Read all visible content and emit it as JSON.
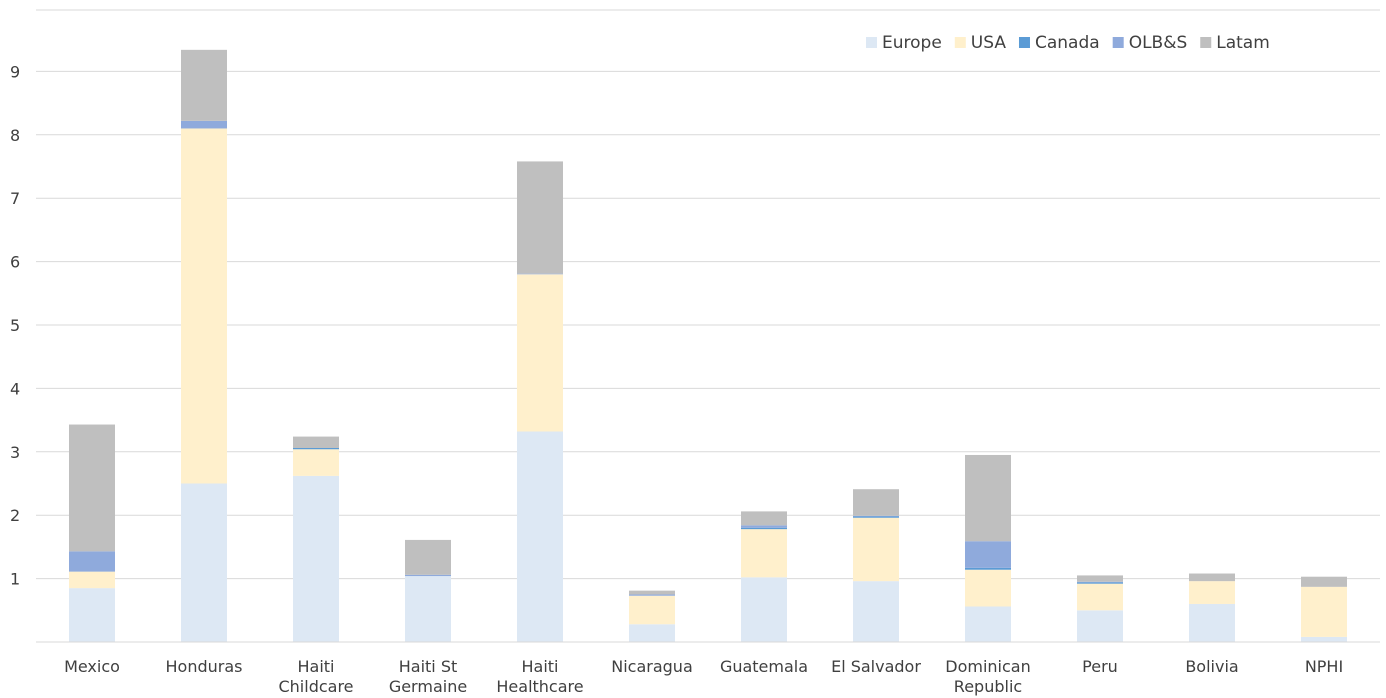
{
  "chart_data": {
    "type": "bar",
    "stacked": true,
    "categories": [
      [
        "Mexico"
      ],
      [
        "Honduras"
      ],
      [
        "Haiti",
        "Childcare"
      ],
      [
        "Haiti St",
        "Germaine"
      ],
      [
        "Haiti",
        "Healthcare"
      ],
      [
        "Nicaragua"
      ],
      [
        "Guatemala"
      ],
      [
        "El Salvador"
      ],
      [
        "Dominican",
        "Republic"
      ],
      [
        "Peru"
      ],
      [
        "Bolivia"
      ],
      [
        "NPHI"
      ]
    ],
    "series": [
      {
        "name": "Europe",
        "color": "#dde8f4",
        "values": [
          0.85,
          2.5,
          2.62,
          1.04,
          3.32,
          0.28,
          1.02,
          0.96,
          0.56,
          0.5,
          0.6,
          0.08
        ]
      },
      {
        "name": "USA",
        "color": "#fff0cc",
        "values": [
          0.26,
          5.6,
          0.42,
          0.0,
          2.48,
          0.45,
          0.76,
          1.0,
          0.58,
          0.42,
          0.36,
          0.79
        ]
      },
      {
        "name": "Canada",
        "color": "#5b9bd5",
        "values": [
          0.0,
          0.0,
          0.02,
          0.0,
          0.0,
          0.0,
          0.02,
          0.02,
          0.03,
          0.02,
          0.0,
          0.0
        ]
      },
      {
        "name": "OLB&S",
        "color": "#8faadc",
        "values": [
          0.32,
          0.12,
          0.0,
          0.02,
          0.01,
          0.02,
          0.04,
          0.01,
          0.42,
          0.01,
          0.0,
          0.0
        ]
      },
      {
        "name": "Latam",
        "color": "#bfbfbf",
        "values": [
          2.0,
          1.12,
          0.18,
          0.55,
          1.77,
          0.06,
          0.22,
          0.42,
          1.36,
          0.1,
          0.12,
          0.16
        ]
      }
    ],
    "yticks": [
      1,
      2,
      3,
      4,
      5,
      6,
      7,
      8,
      9
    ],
    "ylim": [
      0,
      10
    ],
    "grid": true,
    "legend_position": "top-right",
    "title": "",
    "xlabel": "",
    "ylabel": ""
  }
}
